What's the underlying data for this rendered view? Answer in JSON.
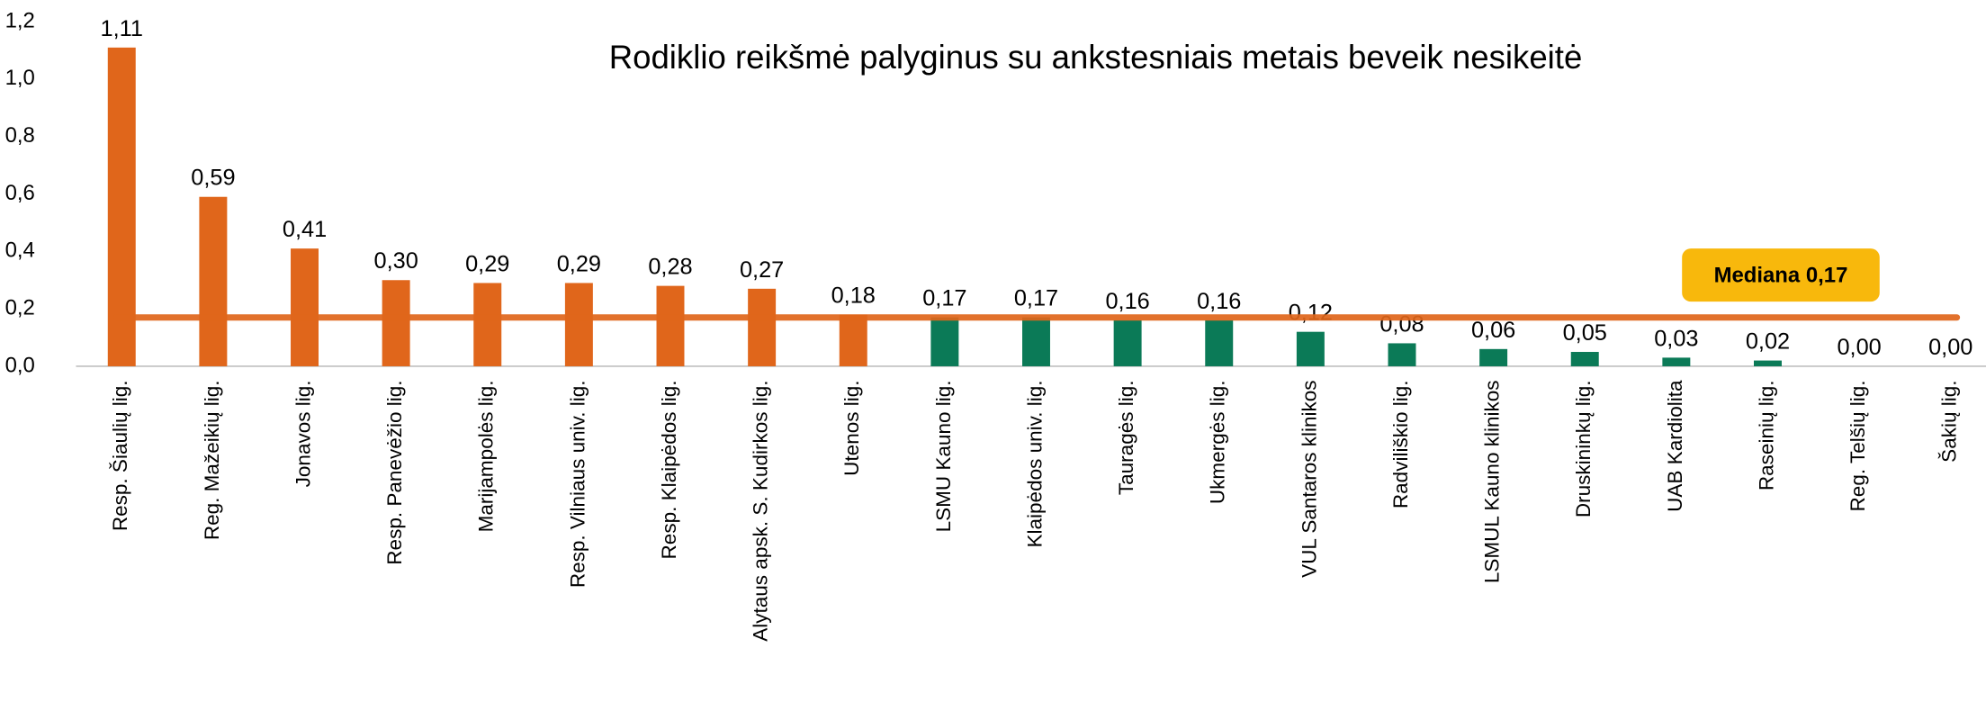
{
  "chart_data": {
    "type": "bar",
    "title": "Rodiklio reikšmė palyginus su ankstesniais metais beveik nesikeitė",
    "categories": [
      "Resp. Šiaulių lig.",
      "Reg. Mažeikių lig.",
      "Jonavos lig.",
      "Resp. Panevėžio lig.",
      "Marijampolės lig.",
      "Resp. Vilniaus univ. lig.",
      "Resp. Klaipėdos lig.",
      "Alytaus apsk. S. Kudirkos lig.",
      "Utenos lig.",
      "LSMU Kauno lig.",
      "Klaipėdos univ. lig.",
      "Tauragės lig.",
      "Ukmergės lig.",
      "VUL Santaros klinikos",
      "Radviliškio lig.",
      "LSMUL Kauno klinikos",
      "Druskininkų lig.",
      "UAB Kardiolita",
      "Raseinių lig.",
      "Reg. Telšių lig.",
      "Šakių lig."
    ],
    "values": [
      1.11,
      0.59,
      0.41,
      0.3,
      0.29,
      0.29,
      0.28,
      0.27,
      0.18,
      0.17,
      0.17,
      0.16,
      0.16,
      0.12,
      0.08,
      0.06,
      0.05,
      0.03,
      0.02,
      0.0,
      0.0
    ],
    "value_labels": [
      "1,11",
      "0,59",
      "0,41",
      "0,30",
      "0,29",
      "0,29",
      "0,28",
      "0,27",
      "0,18",
      "0,17",
      "0,17",
      "0,16",
      "0,16",
      "0,12",
      "0,08",
      "0,06",
      "0,05",
      "0,03",
      "0,02",
      "0,00",
      "0,00"
    ],
    "colors": [
      "#e0661b",
      "#e0661b",
      "#e0661b",
      "#e0661b",
      "#e0661b",
      "#e0661b",
      "#e0661b",
      "#e0661b",
      "#e0661b",
      "#0b7a57",
      "#0b7a57",
      "#0b7a57",
      "#0b7a57",
      "#0b7a57",
      "#0b7a57",
      "#0b7a57",
      "#0b7a57",
      "#0b7a57",
      "#0b7a57",
      "#0b7a57",
      "#0b7a57"
    ],
    "ylim": [
      0,
      1.2
    ],
    "yticks": [
      {
        "value": 0,
        "label": "0,0"
      },
      {
        "value": 0.2,
        "label": "0,2"
      },
      {
        "value": 0.4,
        "label": "0,4"
      },
      {
        "value": 0.6,
        "label": "0,6"
      },
      {
        "value": 0.8,
        "label": "0,8"
      },
      {
        "value": 1.0,
        "label": "1,0"
      },
      {
        "value": 1.2,
        "label": "1,2"
      }
    ],
    "median": {
      "value": 0.17,
      "label": "Mediana 0,17",
      "color": "#e0661b",
      "box_color": "#f8b80c"
    },
    "grid": false
  }
}
